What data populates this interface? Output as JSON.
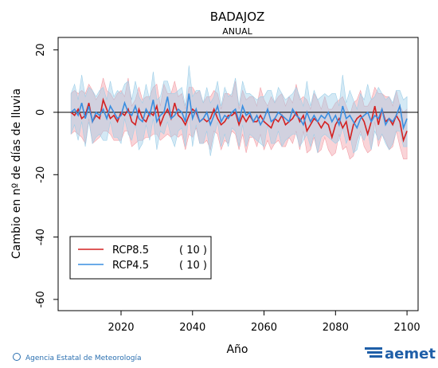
{
  "chart_data": {
    "type": "line",
    "title": "BADAJOZ",
    "subtitle": "ANUAL",
    "x_label": "Año",
    "y_label": "Cambio en nº de días de lluvia",
    "source": "Agencia Estatal de Meteorología",
    "logo": "aemet",
    "xlim": [
      2002.4,
      2103.1
    ],
    "ylim": [
      -63.6,
      24
    ],
    "xticks": [
      2020,
      2040,
      2060,
      2080,
      2100
    ],
    "yticks": [
      -60,
      -40,
      -20,
      0,
      20
    ],
    "x": [
      2006,
      2007,
      2008,
      2009,
      2010,
      2011,
      2012,
      2013,
      2014,
      2015,
      2016,
      2017,
      2018,
      2019,
      2020,
      2021,
      2022,
      2023,
      2024,
      2025,
      2026,
      2027,
      2028,
      2029,
      2030,
      2031,
      2032,
      2033,
      2034,
      2035,
      2036,
      2037,
      2038,
      2039,
      2040,
      2041,
      2042,
      2043,
      2044,
      2045,
      2046,
      2047,
      2048,
      2049,
      2050,
      2051,
      2052,
      2053,
      2054,
      2055,
      2056,
      2057,
      2058,
      2059,
      2060,
      2061,
      2062,
      2063,
      2064,
      2065,
      2066,
      2067,
      2068,
      2069,
      2070,
      2071,
      2072,
      2073,
      2074,
      2075,
      2076,
      2077,
      2078,
      2079,
      2080,
      2081,
      2082,
      2083,
      2084,
      2085,
      2086,
      2087,
      2088,
      2089,
      2090,
      2091,
      2092,
      2093,
      2094,
      2095,
      2096,
      2097,
      2098,
      2099,
      2100
    ],
    "legend_position": "lower left",
    "series": [
      {
        "name": "RCP8.5",
        "legend_note": "( 10 )",
        "color": "#d42020",
        "band_color": "#f2a0a8",
        "values": [
          0,
          -1,
          1,
          -2,
          -1,
          3,
          -3,
          -1,
          -2,
          4,
          1,
          -2,
          -1,
          -3,
          0,
          -1,
          1,
          -3,
          -4,
          1,
          -2,
          -3,
          0,
          -1,
          2,
          -4,
          -1,
          1,
          -2,
          3,
          -1,
          -2,
          -4,
          -1,
          1,
          0,
          -3,
          -2,
          -3,
          -2,
          1,
          -2,
          -4,
          -3,
          -1,
          -1,
          0,
          -4,
          -1,
          -3,
          -1,
          -3,
          -3,
          -1,
          -3,
          -4,
          -5,
          -2,
          -3,
          -1,
          -4,
          -3,
          -2,
          0,
          -3,
          -1,
          -6,
          -4,
          -2,
          -3,
          -5,
          -3,
          -4,
          -8,
          -4,
          -2,
          -5,
          -3,
          -9,
          -4,
          -2,
          -1,
          -3,
          -7,
          -3,
          2,
          -4,
          1,
          -3,
          -2,
          -4,
          -1,
          -3,
          -9,
          -6
        ],
        "upper": [
          6,
          7,
          6,
          7,
          6,
          9,
          7,
          4,
          6,
          11,
          7,
          6,
          4,
          6,
          7,
          5,
          11,
          2,
          4,
          8,
          4,
          5,
          5,
          8,
          9,
          2,
          9,
          6,
          6,
          10,
          5,
          6,
          1,
          8,
          8,
          6,
          7,
          3,
          5,
          5,
          7,
          6,
          1,
          6,
          6,
          5,
          10,
          1,
          7,
          4,
          5,
          5,
          2,
          8,
          4,
          2,
          5,
          3,
          5,
          6,
          2,
          5,
          3,
          9,
          4,
          5,
          4,
          1,
          6,
          4,
          1,
          5,
          1,
          1,
          3,
          4,
          5,
          2,
          -1,
          3,
          4,
          7,
          2,
          2,
          4,
          8,
          6,
          6,
          5,
          5,
          2,
          7,
          2,
          0,
          1
        ],
        "lower": [
          -7,
          -6,
          -7,
          -8,
          -10,
          -2,
          -10,
          -9,
          -8,
          -6,
          -6,
          -7,
          -9,
          -9,
          -9,
          -6,
          -6,
          -11,
          -10,
          -9,
          -9,
          -8,
          -8,
          -7,
          -7,
          -9,
          -8,
          -7,
          -8,
          -7,
          -8,
          -7,
          -12,
          -7,
          -8,
          -5,
          -10,
          -10,
          -9,
          -12,
          -6,
          -7,
          -12,
          -9,
          -10,
          -6,
          -7,
          -12,
          -7,
          -13,
          -8,
          -8,
          -11,
          -7,
          -12,
          -9,
          -12,
          -10,
          -9,
          -11,
          -11,
          -8,
          -10,
          -6,
          -12,
          -6,
          -13,
          -12,
          -8,
          -13,
          -12,
          -8,
          -12,
          -14,
          -13,
          -7,
          -12,
          -11,
          -15,
          -14,
          -9,
          -6,
          -11,
          -13,
          -12,
          -3,
          -11,
          -7,
          -9,
          -12,
          -11,
          -6,
          -11,
          -15,
          -15
        ]
      },
      {
        "name": "RCP4.5",
        "legend_note": "( 10 )",
        "color": "#3a8ee0",
        "band_color": "#9fcfe8",
        "values": [
          0,
          1,
          -1,
          3,
          -2,
          2,
          -3,
          0,
          -1,
          1,
          -2,
          2,
          0,
          -2,
          -1,
          3,
          0,
          -1,
          2,
          -2,
          -3,
          1,
          -1,
          4,
          -3,
          -1,
          0,
          5,
          -2,
          -1,
          1,
          0,
          -3,
          6,
          -2,
          1,
          -3,
          -2,
          0,
          -4,
          -1,
          2,
          -3,
          -1,
          -2,
          0,
          1,
          -3,
          2,
          -1,
          0,
          -3,
          -1,
          -4,
          -2,
          1,
          -3,
          -2,
          0,
          -1,
          -2,
          -3,
          1,
          -1,
          -2,
          -4,
          0,
          -3,
          -1,
          -3,
          -1,
          -2,
          0,
          -3,
          -1,
          -4,
          2,
          -2,
          -1,
          -3,
          -5,
          -2,
          -1,
          0,
          -3,
          -1,
          -2,
          1,
          -4,
          -2,
          -3,
          -1,
          2,
          -5,
          -2
        ],
        "upper": [
          6,
          9,
          4,
          12,
          5,
          8,
          7,
          5,
          7,
          8,
          4,
          10,
          5,
          7,
          6,
          9,
          10,
          4,
          10,
          5,
          3,
          9,
          4,
          13,
          4,
          5,
          10,
          10,
          6,
          6,
          7,
          8,
          2,
          15,
          5,
          7,
          7,
          3,
          8,
          3,
          5,
          10,
          2,
          8,
          5,
          6,
          11,
          2,
          10,
          6,
          6,
          5,
          4,
          5,
          5,
          7,
          7,
          3,
          8,
          6,
          4,
          5,
          6,
          8,
          5,
          2,
          10,
          2,
          7,
          4,
          5,
          6,
          5,
          6,
          6,
          2,
          12,
          3,
          7,
          4,
          1,
          6,
          4,
          9,
          4,
          5,
          8,
          6,
          4,
          5,
          3,
          7,
          7,
          4,
          5
        ],
        "lower": [
          -7,
          -4,
          -9,
          -3,
          -11,
          -3,
          -10,
          -8,
          -7,
          -9,
          -9,
          -3,
          -8,
          -8,
          -10,
          -2,
          -7,
          -9,
          -4,
          -12,
          -10,
          -4,
          -9,
          -2,
          -12,
          -6,
          -7,
          -3,
          -8,
          -11,
          -6,
          -5,
          -11,
          0,
          -11,
          -4,
          -10,
          -10,
          -6,
          -14,
          -8,
          -3,
          -11,
          -7,
          -11,
          -5,
          -6,
          -11,
          -4,
          -11,
          -7,
          -8,
          -9,
          -10,
          -11,
          -4,
          -10,
          -10,
          -6,
          -11,
          -9,
          -8,
          -7,
          -7,
          -11,
          -9,
          -7,
          -11,
          -7,
          -13,
          -8,
          -7,
          -8,
          -9,
          -10,
          -9,
          -5,
          -10,
          -7,
          -13,
          -12,
          -7,
          -9,
          -6,
          -12,
          -6,
          -9,
          -7,
          -10,
          -12,
          -10,
          -6,
          -6,
          -11,
          -11
        ]
      }
    ]
  }
}
